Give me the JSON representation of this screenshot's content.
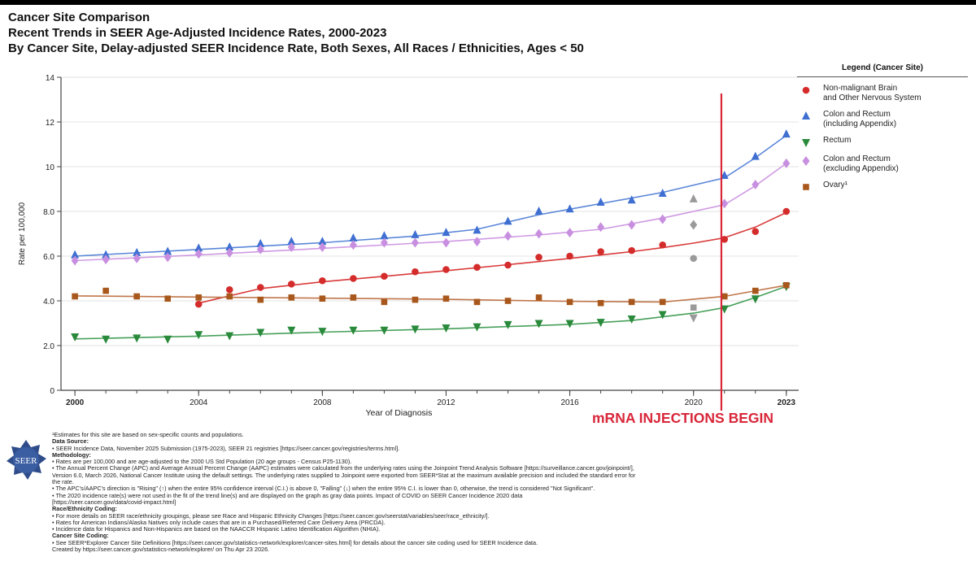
{
  "title_lines": [
    "Cancer Site Comparison",
    "Recent Trends in SEER Age-Adjusted Incidence Rates, 2000-2023",
    "By Cancer Site, Delay-adjusted SEER Incidence Rate, Both Sexes, All Races / Ethnicities, Ages < 50"
  ],
  "annotation": {
    "text": "mRNA INJECTIONS BEGIN",
    "year": 2020.9,
    "color": "#d9273a"
  },
  "logo_text": "SEER",
  "chart_data": {
    "type": "line",
    "title": "Recent Trends in SEER Age-Adjusted Incidence Rates, 2000-2023",
    "xlabel": "Year of Diagnosis",
    "ylabel": "Rate per 100,000",
    "xlim": [
      2000,
      2023
    ],
    "ylim": [
      0,
      14
    ],
    "x_ticks": [
      {
        "value": 2000,
        "label": "2000",
        "bold": true
      },
      {
        "value": 2004,
        "label": "2004",
        "bold": false
      },
      {
        "value": 2008,
        "label": "2008",
        "bold": false
      },
      {
        "value": 2012,
        "label": "2012",
        "bold": false
      },
      {
        "value": 2016,
        "label": "2016",
        "bold": false
      },
      {
        "value": 2020,
        "label": "2020",
        "bold": false
      },
      {
        "value": 2023,
        "label": "2023",
        "bold": true
      }
    ],
    "y_ticks": [
      {
        "value": 0,
        "label": "0"
      },
      {
        "value": 2,
        "label": "2.0"
      },
      {
        "value": 4,
        "label": "4.0"
      },
      {
        "value": 6,
        "label": "6.0"
      },
      {
        "value": 8,
        "label": "8.0"
      },
      {
        "value": 10,
        "label": "10"
      },
      {
        "value": 12,
        "label": "12"
      },
      {
        "value": 14,
        "label": "14"
      }
    ],
    "legend_title": "Legend (Cancer Site)",
    "series": [
      {
        "name": "Non-malignant Brain\nand Other Nervous System",
        "marker": "circle",
        "color": "#d42b2b",
        "line_color": "#d93a3a",
        "x": [
          2004,
          2005,
          2006,
          2007,
          2008,
          2009,
          2010,
          2011,
          2012,
          2013,
          2014,
          2015,
          2016,
          2017,
          2018,
          2019,
          2021,
          2022,
          2023
        ],
        "values": [
          3.85,
          4.5,
          4.6,
          4.75,
          4.9,
          5.0,
          5.1,
          5.3,
          5.4,
          5.5,
          5.6,
          5.95,
          6.0,
          6.2,
          6.25,
          6.5,
          6.75,
          7.1,
          8.0
        ],
        "fit_x": [
          2004,
          2006,
          2008,
          2010,
          2012,
          2014,
          2016,
          2018,
          2019,
          2020,
          2021,
          2022,
          2023
        ],
        "fit": [
          3.9,
          4.55,
          4.85,
          5.1,
          5.35,
          5.62,
          5.9,
          6.2,
          6.38,
          6.58,
          6.82,
          7.3,
          7.95
        ],
        "covid_2020": 5.9
      },
      {
        "name": "Colon and Rectum\n(including Appendix)",
        "marker": "triangle-up",
        "color": "#3e6fd1",
        "line_color": "#5a86d8",
        "x": [
          2000,
          2001,
          2002,
          2003,
          2004,
          2005,
          2006,
          2007,
          2008,
          2009,
          2010,
          2011,
          2012,
          2013,
          2014,
          2015,
          2016,
          2017,
          2018,
          2019,
          2021,
          2022,
          2023
        ],
        "values": [
          6.05,
          6.05,
          6.15,
          6.2,
          6.35,
          6.4,
          6.55,
          6.65,
          6.65,
          6.8,
          6.9,
          6.95,
          7.05,
          7.15,
          7.55,
          8.0,
          8.1,
          8.4,
          8.5,
          8.8,
          9.6,
          10.45,
          11.45
        ],
        "fit_x": [
          2000,
          2004,
          2008,
          2011,
          2013,
          2015,
          2017,
          2019,
          2021,
          2022,
          2023
        ],
        "fit": [
          6.0,
          6.3,
          6.6,
          6.9,
          7.2,
          7.85,
          8.35,
          8.85,
          9.5,
          10.4,
          11.4
        ],
        "covid_2020": 8.55
      },
      {
        "name": "Rectum",
        "marker": "triangle-down",
        "color": "#2a8a3c",
        "line_color": "#47a05a",
        "x": [
          2000,
          2001,
          2002,
          2003,
          2004,
          2005,
          2006,
          2007,
          2008,
          2009,
          2010,
          2011,
          2012,
          2013,
          2014,
          2015,
          2016,
          2017,
          2018,
          2019,
          2021,
          2022,
          2023
        ],
        "values": [
          2.4,
          2.3,
          2.35,
          2.3,
          2.5,
          2.45,
          2.6,
          2.7,
          2.65,
          2.7,
          2.7,
          2.75,
          2.8,
          2.85,
          2.95,
          3.0,
          3.0,
          3.05,
          3.2,
          3.4,
          3.65,
          4.1,
          4.65
        ],
        "fit_x": [
          2000,
          2004,
          2008,
          2012,
          2016,
          2018,
          2020,
          2021,
          2022,
          2023
        ],
        "fit": [
          2.3,
          2.42,
          2.6,
          2.75,
          2.95,
          3.12,
          3.45,
          3.7,
          4.15,
          4.65
        ],
        "covid_2020": 3.25
      },
      {
        "name": "Colon and Rectum\n(excluding Appendix)",
        "marker": "diamond",
        "color": "#c88fe0",
        "line_color": "#cf9ae3",
        "x": [
          2000,
          2001,
          2002,
          2003,
          2004,
          2005,
          2006,
          2007,
          2008,
          2009,
          2010,
          2011,
          2012,
          2013,
          2014,
          2015,
          2016,
          2017,
          2018,
          2019,
          2021,
          2022,
          2023
        ],
        "values": [
          5.8,
          5.85,
          5.9,
          5.95,
          6.1,
          6.15,
          6.3,
          6.4,
          6.4,
          6.5,
          6.6,
          6.6,
          6.6,
          6.65,
          6.9,
          7.0,
          7.05,
          7.3,
          7.4,
          7.65,
          8.35,
          9.2,
          10.15
        ],
        "fit_x": [
          2000,
          2004,
          2008,
          2012,
          2015,
          2017,
          2019,
          2021,
          2022,
          2023
        ],
        "fit": [
          5.8,
          6.05,
          6.35,
          6.65,
          6.95,
          7.2,
          7.7,
          8.3,
          9.15,
          10.15
        ],
        "covid_2020": 7.4
      },
      {
        "name": "Ovary¹",
        "marker": "square",
        "color": "#a8581c",
        "line_color": "#c0764a",
        "x": [
          2000,
          2001,
          2002,
          2003,
          2004,
          2005,
          2006,
          2007,
          2008,
          2009,
          2010,
          2011,
          2012,
          2013,
          2014,
          2015,
          2016,
          2017,
          2018,
          2019,
          2021,
          2022,
          2023
        ],
        "values": [
          4.2,
          4.45,
          4.2,
          4.1,
          4.15,
          4.2,
          4.05,
          4.15,
          4.1,
          4.15,
          3.95,
          4.05,
          4.1,
          3.95,
          4.0,
          4.15,
          3.95,
          3.9,
          3.95,
          3.95,
          4.2,
          4.45,
          4.7
        ],
        "fit_x": [
          2000,
          2004,
          2008,
          2012,
          2016,
          2019,
          2021,
          2022,
          2023
        ],
        "fit": [
          4.22,
          4.17,
          4.12,
          4.07,
          3.98,
          3.95,
          4.2,
          4.45,
          4.7
        ],
        "covid_2020": 3.7
      }
    ]
  },
  "footer": [
    {
      "text": "¹Estimates for this site are based on sex-specific counts and populations.",
      "bold": false
    },
    {
      "text": "Data Source:",
      "bold": true
    },
    {
      "text": "• SEER Incidence Data, November 2025 Submission (1975-2023), SEER 21 registries [https://seer.cancer.gov/registries/terms.html].",
      "bold": false
    },
    {
      "text": "Methodology:",
      "bold": true
    },
    {
      "text": "• Rates are per 100,000 and are age-adjusted to the 2000 US Std Population (20 age groups - Census P25-1130).",
      "bold": false
    },
    {
      "text": "• The Annual Percent Change (APC) and Average Annual Percent Change (AAPC) estimates were calculated from the underlying rates using the Joinpoint Trend Analysis Software [https://surveillance.cancer.gov/joinpoint/],",
      "bold": false
    },
    {
      "text": "   Version 6.0, March 2026, National Cancer Institute using the default settings. The underlying rates supplied to Joinpoint were exported from SEER*Stat at the maximum available precision and included the standard error for",
      "bold": false
    },
    {
      "text": "   the rate.",
      "bold": false
    },
    {
      "text": "• The APC's/AAPC's direction is \"Rising\" (↑) when the entire 95% confidence interval (C.I.) is above 0, \"Falling\" (↓) when the entire 95% C.I. is lower than 0, otherwise, the trend is considered \"Not Significant\".",
      "bold": false
    },
    {
      "text": "• The 2020 incidence rate(s) were not used in the fit of the trend line(s) and are displayed on the graph as gray data points. Impact of COVID on SEER Cancer Incidence 2020 data",
      "bold": false
    },
    {
      "text": "   [https://seer.cancer.gov/data/covid-impact.html]",
      "bold": false
    },
    {
      "text": "Race/Ethnicity Coding:",
      "bold": true
    },
    {
      "text": "• For more details on SEER race/ethnicity groupings, please see Race and Hispanic Ethnicity Changes [https://seer.cancer.gov/seerstat/variables/seer/race_ethnicity/].",
      "bold": false
    },
    {
      "text": "• Rates for American Indians/Alaska Natives only include cases that are in a Purchased/Referred Care Delivery Area (PRCDA).",
      "bold": false
    },
    {
      "text": "• Incidence data for Hispanics and Non-Hispanics are based on the NAACCR Hispanic Latino Identification Algorithm (NHIA).",
      "bold": false
    },
    {
      "text": "Cancer Site Coding:",
      "bold": true
    },
    {
      "text": "• See SEER*Explorer Cancer Site Definitions [https://seer.cancer.gov/statistics-network/explorer/cancer-sites.html] for details about the cancer site coding used for SEER Incidence data.",
      "bold": false
    },
    {
      "text": "Created by https://seer.cancer.gov/statistics-network/explorer/ on Thu Apr 23 2026.",
      "bold": false
    }
  ],
  "colors": {
    "axis": "#444444",
    "grid": "#e3e3e3",
    "covid_gray": "#9a9a9a"
  }
}
